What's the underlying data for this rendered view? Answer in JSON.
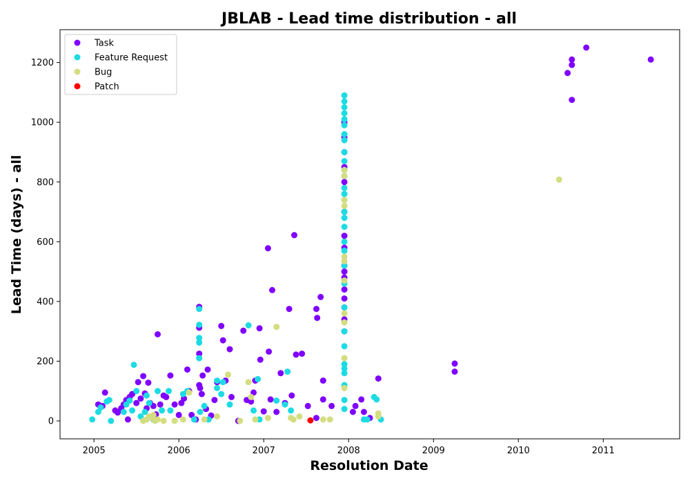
{
  "chart_data": {
    "type": "scatter",
    "title": "JBLAB - Lead time distribution - all",
    "xlabel": "Resolution Date",
    "ylabel": "Lead Time (days) - all",
    "xlim": [
      2004.6,
      2011.9
    ],
    "ylim": [
      -60,
      1310
    ],
    "xticks": [
      2005,
      2006,
      2007,
      2008,
      2009,
      2010,
      2011
    ],
    "yticks": [
      0,
      200,
      400,
      600,
      800,
      1000,
      1200
    ],
    "legend_position": "top-left",
    "grid": false,
    "series": [
      {
        "name": "Task",
        "color": "#8000ff",
        "points": [
          [
            2005.05,
            55
          ],
          [
            2005.1,
            50
          ],
          [
            2005.13,
            95
          ],
          [
            2005.25,
            35
          ],
          [
            2005.28,
            28
          ],
          [
            2005.32,
            42
          ],
          [
            2005.35,
            55
          ],
          [
            2005.38,
            70
          ],
          [
            2005.4,
            5
          ],
          [
            2005.42,
            80
          ],
          [
            2005.45,
            90
          ],
          [
            2005.5,
            60
          ],
          [
            2005.52,
            130
          ],
          [
            2005.55,
            75
          ],
          [
            2005.58,
            150
          ],
          [
            2005.6,
            92
          ],
          [
            2005.62,
            42
          ],
          [
            2005.64,
            128
          ],
          [
            2005.66,
            60
          ],
          [
            2005.7,
            50
          ],
          [
            2005.73,
            22
          ],
          [
            2005.75,
            290
          ],
          [
            2005.78,
            55
          ],
          [
            2005.82,
            85
          ],
          [
            2005.85,
            80
          ],
          [
            2005.9,
            152
          ],
          [
            2005.95,
            55
          ],
          [
            2006.0,
            20
          ],
          [
            2006.03,
            60
          ],
          [
            2006.06,
            75
          ],
          [
            2006.1,
            172
          ],
          [
            2006.12,
            100
          ],
          [
            2006.15,
            20
          ],
          [
            2006.2,
            5
          ],
          [
            2006.24,
            382
          ],
          [
            2006.24,
            312
          ],
          [
            2006.24,
            225
          ],
          [
            2006.24,
            120
          ],
          [
            2006.25,
            110
          ],
          [
            2006.27,
            90
          ],
          [
            2006.28,
            152
          ],
          [
            2006.32,
            40
          ],
          [
            2006.34,
            172
          ],
          [
            2006.38,
            18
          ],
          [
            2006.42,
            70
          ],
          [
            2006.45,
            130
          ],
          [
            2006.5,
            318
          ],
          [
            2006.52,
            270
          ],
          [
            2006.55,
            135
          ],
          [
            2006.6,
            240
          ],
          [
            2006.62,
            80
          ],
          [
            2006.7,
            0
          ],
          [
            2006.76,
            302
          ],
          [
            2006.8,
            70
          ],
          [
            2006.85,
            65
          ],
          [
            2006.88,
            95
          ],
          [
            2006.9,
            135
          ],
          [
            2006.95,
            310
          ],
          [
            2006.96,
            205
          ],
          [
            2007.0,
            32
          ],
          [
            2007.05,
            578
          ],
          [
            2007.06,
            232
          ],
          [
            2007.08,
            72
          ],
          [
            2007.1,
            438
          ],
          [
            2007.15,
            30
          ],
          [
            2007.2,
            160
          ],
          [
            2007.25,
            60
          ],
          [
            2007.3,
            375
          ],
          [
            2007.33,
            85
          ],
          [
            2007.36,
            622
          ],
          [
            2007.38,
            222
          ],
          [
            2007.45,
            225
          ],
          [
            2007.52,
            50
          ],
          [
            2007.62,
            10
          ],
          [
            2007.62,
            375
          ],
          [
            2007.63,
            345
          ],
          [
            2007.67,
            415
          ],
          [
            2007.7,
            135
          ],
          [
            2007.7,
            72
          ],
          [
            2007.8,
            50
          ],
          [
            2007.95,
            1000
          ],
          [
            2007.95,
            950
          ],
          [
            2007.95,
            900
          ],
          [
            2007.95,
            850
          ],
          [
            2007.95,
            800
          ],
          [
            2007.95,
            700
          ],
          [
            2007.95,
            620
          ],
          [
            2007.95,
            580
          ],
          [
            2007.95,
            520
          ],
          [
            2007.95,
            500
          ],
          [
            2007.95,
            480
          ],
          [
            2007.95,
            440
          ],
          [
            2007.95,
            410
          ],
          [
            2007.95,
            380
          ],
          [
            2007.95,
            340
          ],
          [
            2007.95,
            300
          ],
          [
            2008.05,
            30
          ],
          [
            2008.08,
            50
          ],
          [
            2008.15,
            72
          ],
          [
            2008.18,
            30
          ],
          [
            2008.25,
            10
          ],
          [
            2008.35,
            142
          ],
          [
            2009.25,
            192
          ],
          [
            2009.25,
            165
          ],
          [
            2010.58,
            1165
          ],
          [
            2010.63,
            1210
          ],
          [
            2010.63,
            1192
          ],
          [
            2010.63,
            1075
          ],
          [
            2010.8,
            1250
          ],
          [
            2011.56,
            1210
          ]
        ]
      },
      {
        "name": "Feature Request",
        "color": "#1ddbe3",
        "points": [
          [
            2004.98,
            5
          ],
          [
            2005.05,
            30
          ],
          [
            2005.08,
            45
          ],
          [
            2005.15,
            65
          ],
          [
            2005.18,
            70
          ],
          [
            2005.2,
            0
          ],
          [
            2005.35,
            30
          ],
          [
            2005.38,
            55
          ],
          [
            2005.42,
            68
          ],
          [
            2005.45,
            35
          ],
          [
            2005.47,
            188
          ],
          [
            2005.5,
            100
          ],
          [
            2005.55,
            15
          ],
          [
            2005.6,
            30
          ],
          [
            2005.62,
            85
          ],
          [
            2005.65,
            60
          ],
          [
            2005.7,
            5
          ],
          [
            2005.75,
            100
          ],
          [
            2005.8,
            35
          ],
          [
            2005.88,
            100
          ],
          [
            2005.9,
            35
          ],
          [
            2006.05,
            90
          ],
          [
            2006.1,
            100
          ],
          [
            2006.18,
            5
          ],
          [
            2006.24,
            375
          ],
          [
            2006.24,
            322
          ],
          [
            2006.24,
            278
          ],
          [
            2006.24,
            262
          ],
          [
            2006.24,
            210
          ],
          [
            2006.25,
            30
          ],
          [
            2006.3,
            50
          ],
          [
            2006.35,
            5
          ],
          [
            2006.45,
            135
          ],
          [
            2006.45,
            110
          ],
          [
            2006.5,
            90
          ],
          [
            2006.52,
            130
          ],
          [
            2006.6,
            55
          ],
          [
            2006.82,
            320
          ],
          [
            2006.88,
            35
          ],
          [
            2006.93,
            140
          ],
          [
            2006.95,
            5
          ],
          [
            2007.15,
            68
          ],
          [
            2007.25,
            55
          ],
          [
            2007.28,
            165
          ],
          [
            2007.32,
            35
          ],
          [
            2007.95,
            1090
          ],
          [
            2007.95,
            1070
          ],
          [
            2007.95,
            1050
          ],
          [
            2007.95,
            1030
          ],
          [
            2007.95,
            1010
          ],
          [
            2007.95,
            990
          ],
          [
            2007.95,
            960
          ],
          [
            2007.95,
            940
          ],
          [
            2007.95,
            900
          ],
          [
            2007.95,
            870
          ],
          [
            2007.95,
            840
          ],
          [
            2007.95,
            820
          ],
          [
            2007.95,
            780
          ],
          [
            2007.95,
            760
          ],
          [
            2007.95,
            740
          ],
          [
            2007.95,
            700
          ],
          [
            2007.95,
            680
          ],
          [
            2007.95,
            650
          ],
          [
            2007.95,
            600
          ],
          [
            2007.95,
            570
          ],
          [
            2007.95,
            520
          ],
          [
            2007.95,
            460
          ],
          [
            2007.95,
            380
          ],
          [
            2007.95,
            300
          ],
          [
            2007.95,
            250
          ],
          [
            2007.95,
            190
          ],
          [
            2007.95,
            175
          ],
          [
            2007.95,
            160
          ],
          [
            2007.95,
            120
          ],
          [
            2007.95,
            70
          ],
          [
            2007.95,
            40
          ],
          [
            2008.18,
            5
          ],
          [
            2008.22,
            5
          ],
          [
            2008.3,
            80
          ],
          [
            2008.33,
            72
          ],
          [
            2008.38,
            5
          ]
        ]
      },
      {
        "name": "Bug",
        "color": "#d4dd80",
        "points": [
          [
            2005.58,
            0
          ],
          [
            2005.62,
            5
          ],
          [
            2005.65,
            15
          ],
          [
            2005.68,
            10
          ],
          [
            2005.7,
            20
          ],
          [
            2005.72,
            0
          ],
          [
            2005.75,
            5
          ],
          [
            2005.82,
            0
          ],
          [
            2005.95,
            0
          ],
          [
            2006.05,
            5
          ],
          [
            2006.12,
            95
          ],
          [
            2006.3,
            5
          ],
          [
            2006.45,
            15
          ],
          [
            2006.58,
            155
          ],
          [
            2006.72,
            0
          ],
          [
            2006.82,
            130
          ],
          [
            2006.85,
            80
          ],
          [
            2006.9,
            5
          ],
          [
            2007.05,
            10
          ],
          [
            2007.15,
            315
          ],
          [
            2007.32,
            10
          ],
          [
            2007.35,
            5
          ],
          [
            2007.42,
            15
          ],
          [
            2007.7,
            5
          ],
          [
            2007.78,
            5
          ],
          [
            2007.95,
            840
          ],
          [
            2007.95,
            820
          ],
          [
            2007.95,
            740
          ],
          [
            2007.95,
            720
          ],
          [
            2007.95,
            550
          ],
          [
            2007.95,
            535
          ],
          [
            2007.95,
            470
          ],
          [
            2007.95,
            360
          ],
          [
            2007.95,
            330
          ],
          [
            2007.95,
            210
          ],
          [
            2007.95,
            110
          ],
          [
            2008.35,
            25
          ],
          [
            2008.35,
            15
          ],
          [
            2010.48,
            808
          ]
        ]
      },
      {
        "name": "Patch",
        "color": "#ff0000",
        "points": [
          [
            2007.55,
            2
          ]
        ]
      }
    ]
  }
}
